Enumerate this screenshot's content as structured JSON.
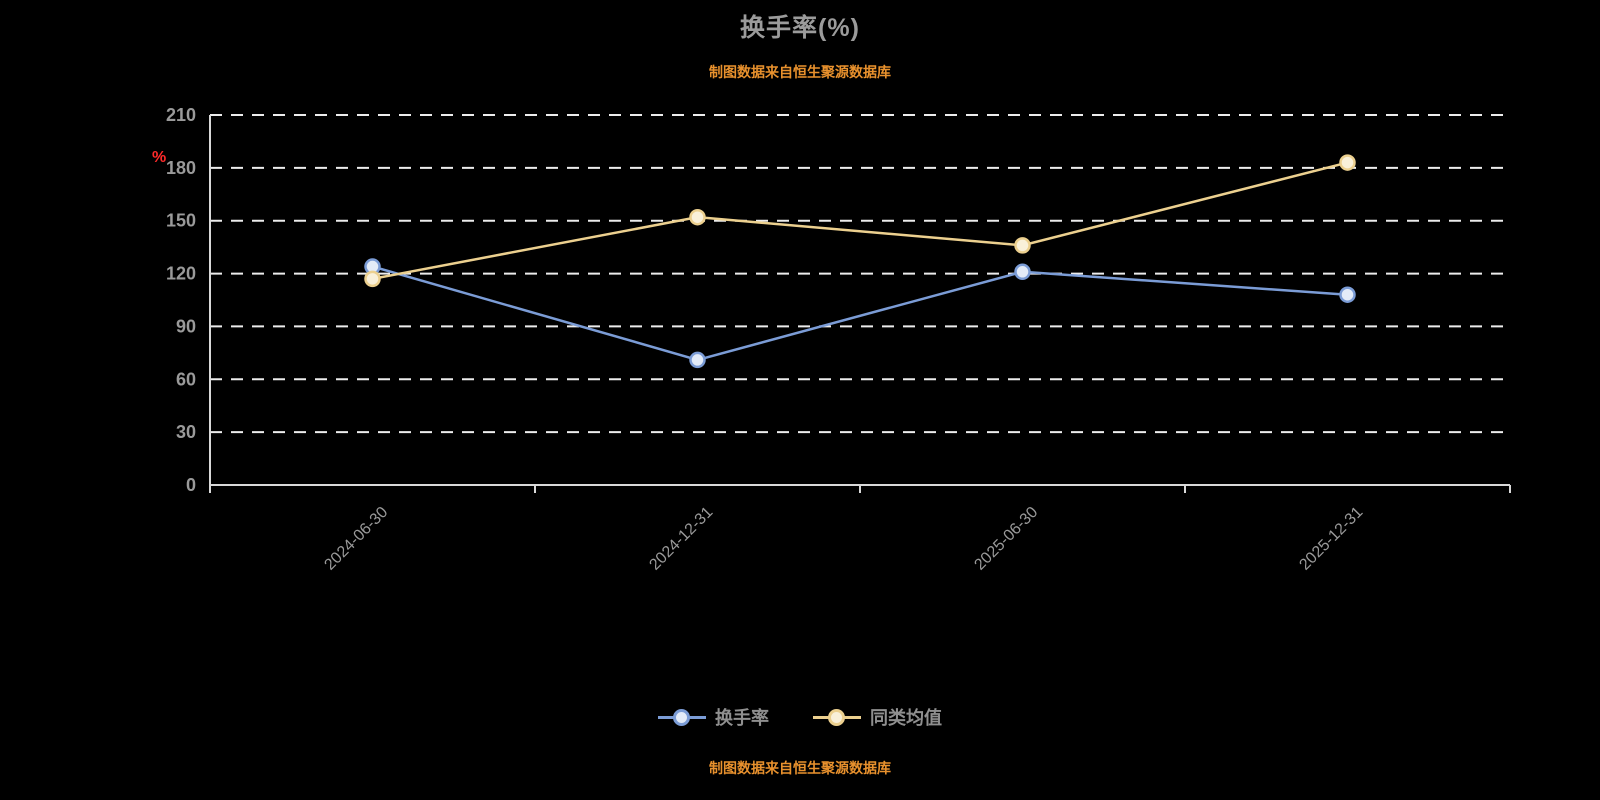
{
  "title": "换手率(%)",
  "subtitle": "制图数据来自恒生聚源数据库",
  "footer": "制图数据来自恒生聚源数据库",
  "colors": {
    "background": "#000000",
    "title_text": "#9b9b9b",
    "source_text": "#e8912d",
    "grid": "#ececec",
    "axis": "#d9d9d9",
    "tick_label": "#9a9a9a",
    "unit_label": "#ff2a2a",
    "legend_text": "#8f8f8f"
  },
  "chart_data": {
    "type": "line",
    "categories": [
      "2024-06-30",
      "2024-12-31",
      "2025-06-30",
      "2025-12-31"
    ],
    "series": [
      {
        "name": "换手率",
        "color": "#7b9cd6",
        "marker_fill": "#e3ebf8",
        "values": [
          124,
          71,
          121,
          108
        ]
      },
      {
        "name": "同类均值",
        "color": "#ecd08f",
        "marker_fill": "#f9f0d9",
        "values": [
          117,
          152,
          136,
          183
        ]
      }
    ],
    "title": "换手率(%)",
    "xlabel": "",
    "ylabel": "%",
    "ylim": [
      0,
      210
    ],
    "ytick_step": 30,
    "grid": true,
    "grid_style": "dashed",
    "legend_position": "bottom"
  }
}
